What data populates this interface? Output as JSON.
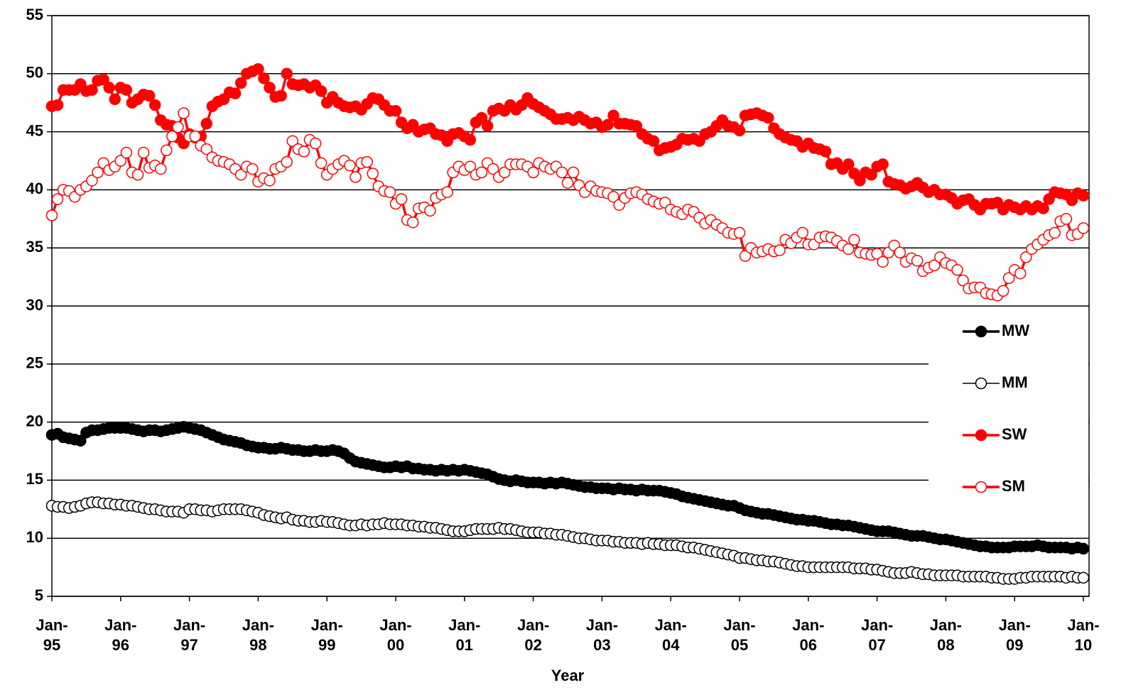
{
  "chart_data": {
    "type": "line",
    "x_label": "Year",
    "categories": [
      "Jan-95",
      null,
      null,
      null,
      null,
      null,
      null,
      null,
      null,
      null,
      null,
      null,
      "Jan-96",
      null,
      null,
      null,
      null,
      null,
      null,
      null,
      null,
      null,
      null,
      null,
      "Jan-97",
      null,
      null,
      null,
      null,
      null,
      null,
      null,
      null,
      null,
      null,
      null,
      "Jan-98",
      null,
      null,
      null,
      null,
      null,
      null,
      null,
      null,
      null,
      null,
      null,
      "Jan-99",
      null,
      null,
      null,
      null,
      null,
      null,
      null,
      null,
      null,
      null,
      null,
      "Jan-00",
      null,
      null,
      null,
      null,
      null,
      null,
      null,
      null,
      null,
      null,
      null,
      "Jan-01",
      null,
      null,
      null,
      null,
      null,
      null,
      null,
      null,
      null,
      null,
      null,
      "Jan-02",
      null,
      null,
      null,
      null,
      null,
      null,
      null,
      null,
      null,
      null,
      null,
      "Jan-03",
      null,
      null,
      null,
      null,
      null,
      null,
      null,
      null,
      null,
      null,
      null,
      "Jan-04",
      null,
      null,
      null,
      null,
      null,
      null,
      null,
      null,
      null,
      null,
      null,
      "Jan-05",
      null,
      null,
      null,
      null,
      null,
      null,
      null,
      null,
      null,
      null,
      null,
      "Jan-06",
      null,
      null,
      null,
      null,
      null,
      null,
      null,
      null,
      null,
      null,
      null,
      "Jan-07",
      null,
      null,
      null,
      null,
      null,
      null,
      null,
      null,
      null,
      null,
      null,
      "Jan-08",
      null,
      null,
      null,
      null,
      null,
      null,
      null,
      null,
      null,
      null,
      null,
      "Jan-09",
      null,
      null,
      null,
      null,
      null,
      null,
      null,
      null,
      null,
      null,
      null,
      "Jan-10"
    ],
    "series": [
      {
        "name": "MW",
        "color": "#000000",
        "marker_fill": "#000000",
        "values": [
          18.9,
          19.0,
          18.7,
          18.6,
          18.5,
          18.4,
          19.1,
          19.3,
          19.3,
          19.4,
          19.5,
          19.5,
          19.5,
          19.5,
          19.4,
          19.3,
          19.2,
          19.3,
          19.3,
          19.2,
          19.3,
          19.4,
          19.5,
          19.6,
          19.5,
          19.4,
          19.3,
          19.1,
          18.9,
          18.7,
          18.5,
          18.4,
          18.3,
          18.2,
          18.0,
          17.9,
          17.8,
          17.8,
          17.7,
          17.7,
          17.8,
          17.7,
          17.6,
          17.6,
          17.5,
          17.5,
          17.6,
          17.5,
          17.5,
          17.6,
          17.5,
          17.3,
          16.9,
          16.6,
          16.5,
          16.4,
          16.3,
          16.2,
          16.1,
          16.1,
          16.2,
          16.1,
          16.2,
          16.0,
          16.0,
          15.9,
          15.9,
          15.8,
          15.9,
          15.8,
          15.9,
          15.8,
          15.9,
          15.8,
          15.7,
          15.6,
          15.5,
          15.3,
          15.1,
          15.0,
          14.9,
          15.0,
          14.9,
          14.8,
          14.8,
          14.8,
          14.7,
          14.8,
          14.7,
          14.8,
          14.7,
          14.6,
          14.5,
          14.4,
          14.4,
          14.3,
          14.3,
          14.3,
          14.2,
          14.3,
          14.2,
          14.2,
          14.1,
          14.2,
          14.1,
          14.1,
          14.1,
          14.0,
          13.9,
          13.8,
          13.6,
          13.5,
          13.4,
          13.3,
          13.2,
          13.1,
          13.0,
          12.9,
          12.8,
          12.8,
          12.6,
          12.4,
          12.3,
          12.2,
          12.1,
          12.1,
          12.0,
          11.9,
          11.8,
          11.7,
          11.6,
          11.6,
          11.5,
          11.5,
          11.4,
          11.3,
          11.2,
          11.2,
          11.1,
          11.1,
          11.0,
          10.9,
          10.8,
          10.7,
          10.6,
          10.6,
          10.6,
          10.5,
          10.4,
          10.3,
          10.2,
          10.2,
          10.2,
          10.1,
          10.0,
          9.9,
          9.9,
          9.8,
          9.7,
          9.6,
          9.5,
          9.4,
          9.3,
          9.3,
          9.2,
          9.2,
          9.2,
          9.2,
          9.3,
          9.3,
          9.3,
          9.3,
          9.4,
          9.3,
          9.2,
          9.2,
          9.2,
          9.2,
          9.1,
          9.2,
          9.1
        ]
      },
      {
        "name": "MM",
        "color": "#000000",
        "marker_fill": "#ffffff",
        "values": [
          12.8,
          12.7,
          12.7,
          12.6,
          12.7,
          12.8,
          13.0,
          13.1,
          13.1,
          13.0,
          13.0,
          12.9,
          12.9,
          12.8,
          12.8,
          12.7,
          12.6,
          12.5,
          12.5,
          12.4,
          12.3,
          12.3,
          12.3,
          12.2,
          12.5,
          12.5,
          12.4,
          12.4,
          12.3,
          12.4,
          12.5,
          12.5,
          12.5,
          12.5,
          12.4,
          12.3,
          12.2,
          12.0,
          11.9,
          11.8,
          11.7,
          11.8,
          11.6,
          11.5,
          11.5,
          11.4,
          11.4,
          11.5,
          11.4,
          11.4,
          11.3,
          11.2,
          11.1,
          11.1,
          11.2,
          11.1,
          11.2,
          11.2,
          11.3,
          11.2,
          11.2,
          11.2,
          11.1,
          11.1,
          11.0,
          11.0,
          10.9,
          10.9,
          10.8,
          10.7,
          10.6,
          10.6,
          10.6,
          10.7,
          10.8,
          10.8,
          10.8,
          10.8,
          10.9,
          10.8,
          10.8,
          10.7,
          10.6,
          10.5,
          10.5,
          10.5,
          10.4,
          10.4,
          10.3,
          10.3,
          10.2,
          10.1,
          10.0,
          10.0,
          9.9,
          9.8,
          9.8,
          9.8,
          9.7,
          9.7,
          9.6,
          9.6,
          9.6,
          9.5,
          9.6,
          9.5,
          9.5,
          9.4,
          9.4,
          9.4,
          9.3,
          9.2,
          9.2,
          9.1,
          9.0,
          8.9,
          8.8,
          8.7,
          8.6,
          8.5,
          8.3,
          8.3,
          8.2,
          8.1,
          8.1,
          8.0,
          8.0,
          7.9,
          7.8,
          7.7,
          7.6,
          7.6,
          7.5,
          7.5,
          7.5,
          7.5,
          7.5,
          7.5,
          7.5,
          7.5,
          7.4,
          7.4,
          7.4,
          7.3,
          7.3,
          7.2,
          7.1,
          7.0,
          7.0,
          7.0,
          7.1,
          7.0,
          6.9,
          6.9,
          6.8,
          6.8,
          6.8,
          6.8,
          6.8,
          6.7,
          6.7,
          6.7,
          6.7,
          6.7,
          6.6,
          6.6,
          6.5,
          6.5,
          6.5,
          6.6,
          6.6,
          6.7,
          6.7,
          6.7,
          6.7,
          6.7,
          6.7,
          6.6,
          6.7,
          6.6,
          6.6
        ]
      },
      {
        "name": "SW",
        "color": "#ff0000",
        "marker_fill": "#ff0000",
        "values": [
          47.2,
          47.3,
          48.6,
          48.6,
          48.6,
          49.1,
          48.5,
          48.6,
          49.4,
          49.5,
          48.8,
          47.8,
          48.8,
          48.6,
          47.5,
          47.8,
          48.2,
          48.1,
          47.3,
          46.0,
          45.6,
          45.5,
          44.5,
          44.0,
          44.8,
          44.5,
          44.6,
          45.7,
          47.2,
          47.6,
          47.8,
          48.4,
          48.3,
          49.2,
          50.0,
          50.2,
          50.4,
          49.6,
          48.8,
          48.0,
          48.1,
          50.0,
          49.1,
          49.0,
          49.1,
          48.8,
          49.0,
          48.5,
          47.5,
          48.0,
          47.5,
          47.2,
          47.1,
          47.2,
          46.9,
          47.4,
          47.9,
          47.8,
          47.3,
          46.8,
          46.8,
          45.8,
          45.3,
          45.6,
          45.0,
          45.2,
          45.3,
          44.8,
          44.7,
          44.2,
          44.8,
          44.9,
          44.6,
          44.3,
          45.8,
          46.2,
          45.5,
          46.8,
          47.0,
          46.8,
          47.3,
          46.9,
          47.3,
          47.9,
          47.4,
          47.1,
          46.8,
          46.5,
          46.1,
          46.1,
          46.2,
          46.0,
          46.3,
          46.0,
          45.7,
          45.8,
          45.4,
          45.6,
          46.4,
          45.7,
          45.7,
          45.6,
          45.5,
          44.8,
          44.4,
          44.2,
          43.4,
          43.6,
          43.7,
          43.9,
          44.4,
          44.3,
          44.4,
          44.2,
          44.8,
          45.0,
          45.5,
          46.0,
          45.5,
          45.4,
          45.1,
          46.4,
          46.5,
          46.6,
          46.4,
          46.2,
          45.3,
          44.8,
          44.5,
          44.3,
          44.2,
          43.7,
          44.0,
          43.6,
          43.5,
          43.3,
          42.2,
          42.3,
          41.8,
          42.2,
          41.4,
          40.8,
          41.5,
          41.3,
          42.0,
          42.2,
          40.7,
          40.5,
          40.4,
          40.1,
          40.3,
          40.6,
          40.2,
          39.8,
          40.0,
          39.6,
          39.6,
          39.3,
          38.8,
          39.1,
          39.2,
          38.7,
          38.3,
          38.8,
          38.8,
          38.9,
          38.3,
          38.7,
          38.5,
          38.3,
          38.6,
          38.3,
          38.6,
          38.4,
          39.2,
          39.8,
          39.7,
          39.6,
          39.1,
          39.7,
          39.5
        ]
      },
      {
        "name": "SM",
        "color": "#ff0000",
        "marker_fill": "#ffffff",
        "values": [
          37.8,
          39.2,
          40.0,
          39.9,
          39.4,
          40.0,
          40.3,
          40.8,
          41.5,
          42.3,
          41.7,
          42.0,
          42.5,
          43.2,
          41.5,
          41.3,
          43.2,
          41.9,
          42.1,
          41.8,
          43.4,
          44.6,
          45.4,
          46.6,
          44.6,
          44.6,
          43.8,
          43.5,
          42.8,
          42.5,
          42.4,
          42.2,
          41.8,
          41.3,
          42.0,
          41.8,
          40.7,
          41.0,
          40.8,
          41.8,
          42.0,
          42.4,
          44.2,
          43.5,
          43.3,
          44.3,
          44.0,
          42.3,
          41.3,
          41.8,
          42.2,
          42.5,
          42.1,
          41.1,
          42.3,
          42.4,
          41.4,
          40.3,
          39.9,
          39.8,
          38.8,
          39.2,
          37.4,
          37.2,
          38.4,
          38.5,
          38.2,
          39.3,
          39.6,
          39.8,
          41.5,
          42.0,
          41.7,
          42.0,
          41.3,
          41.5,
          42.3,
          41.8,
          41.1,
          41.5,
          42.2,
          42.2,
          42.2,
          42.0,
          41.5,
          42.3,
          42.0,
          41.8,
          42.0,
          41.5,
          40.6,
          41.5,
          40.4,
          39.8,
          40.3,
          39.9,
          39.8,
          39.7,
          39.4,
          38.7,
          39.3,
          39.7,
          39.8,
          39.6,
          39.2,
          39.0,
          38.8,
          38.9,
          38.3,
          38.1,
          37.9,
          38.3,
          38.1,
          37.6,
          37.1,
          37.4,
          37.0,
          36.7,
          36.3,
          36.2,
          36.3,
          34.3,
          35.0,
          34.6,
          34.7,
          34.9,
          34.7,
          34.8,
          35.7,
          35.4,
          35.9,
          36.3,
          35.3,
          35.3,
          35.9,
          36.0,
          35.9,
          35.6,
          35.2,
          34.9,
          35.7,
          34.6,
          34.5,
          34.4,
          34.5,
          33.8,
          34.6,
          35.2,
          34.6,
          33.8,
          34.1,
          33.9,
          33.0,
          33.3,
          33.5,
          34.2,
          33.7,
          33.5,
          33.1,
          32.2,
          31.5,
          31.6,
          31.6,
          31.1,
          31.0,
          30.9,
          31.3,
          32.4,
          33.1,
          32.8,
          34.2,
          34.9,
          35.3,
          35.7,
          36.1,
          36.3,
          37.3,
          37.5,
          36.1,
          36.2,
          36.7
        ]
      }
    ],
    "ylim": [
      5,
      55
    ],
    "yticks": [
      5,
      10,
      15,
      20,
      25,
      30,
      35,
      40,
      45,
      50,
      55
    ],
    "grid": true,
    "legend": "right"
  }
}
